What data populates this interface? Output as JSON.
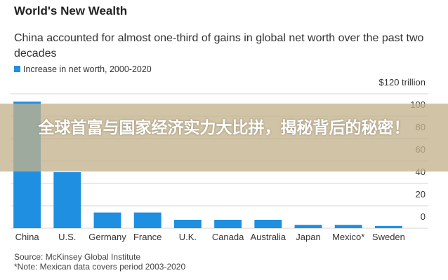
{
  "chart_data": {
    "type": "bar",
    "title": "World's New Wealth",
    "subtitle": "China accounted for almost one-third of gains in global net worth over the past two decades",
    "series": [
      {
        "name": "Increase in net worth, 2000-2020",
        "color": "#1e8fe1",
        "values": [
          113,
          50,
          14,
          14,
          7.5,
          7.5,
          7.5,
          3,
          3,
          2
        ]
      }
    ],
    "categories": [
      "China",
      "U.S.",
      "Germany",
      "France",
      "U.K.",
      "Canada",
      "Australia",
      "Japan",
      "Mexico*",
      "Sweden"
    ],
    "ylim": [
      0,
      120
    ],
    "yticks": [
      0,
      20,
      40,
      60,
      80,
      100,
      {
        "value": 120,
        "label": "$120 trillion"
      }
    ],
    "grid": true,
    "source": "Source: McKinsey Global Institute",
    "note": "*Note: Mexican data covers period 2003-2020"
  },
  "banner": {
    "text": "全球首富与国家经济实力大比拼，揭秘背后的秘密！"
  }
}
